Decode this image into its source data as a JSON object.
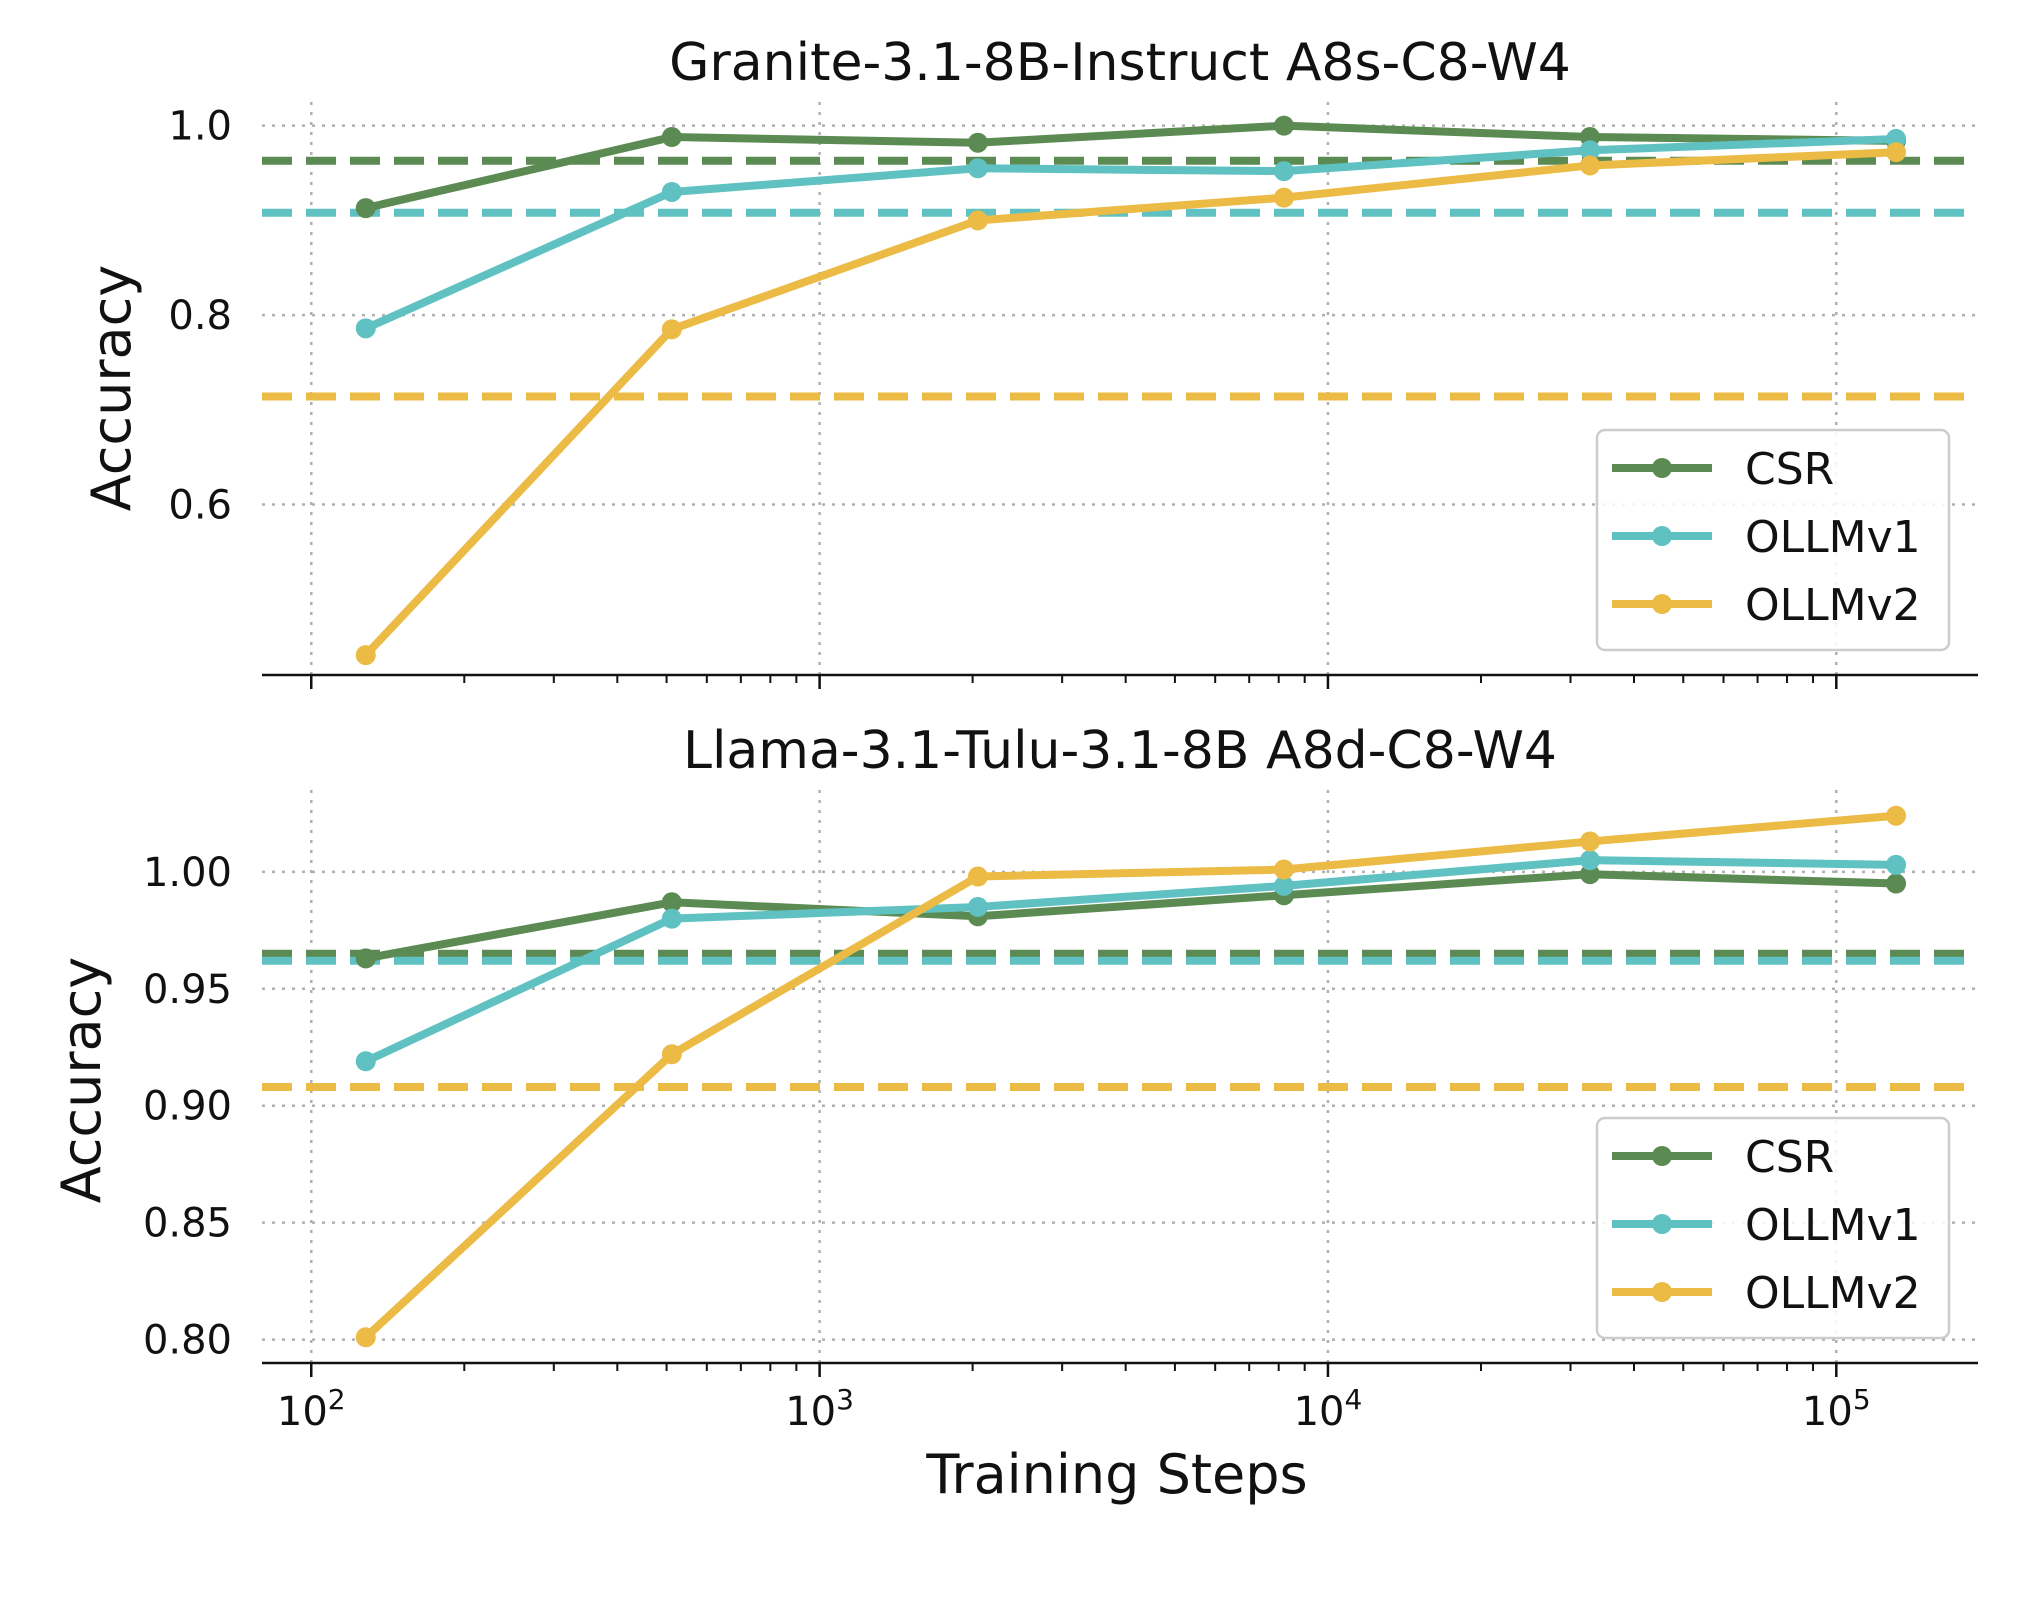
{
  "chart_data": [
    {
      "type": "line",
      "title": "Granite-3.1-8B-Instruct A8s-C8-W4",
      "xlabel": "",
      "ylabel": "Accuracy",
      "xscale": "log",
      "xlim": [
        80,
        190000
      ],
      "ylim": [
        0.42,
        1.025
      ],
      "grid": true,
      "legend": "lower right",
      "yticks": [
        0.6,
        0.8,
        1.0
      ],
      "ytick_labels": [
        "0.6",
        "0.8",
        "1.0"
      ],
      "x": [
        128,
        512,
        2048,
        8192,
        32768,
        131072
      ],
      "series": [
        {
          "name": "CSR",
          "color": "#5b8a52",
          "values": [
            0.913,
            0.988,
            0.982,
            1.0,
            0.988,
            0.984
          ],
          "baseline": 0.963
        },
        {
          "name": "OLLMv1",
          "color": "#5fc1c1",
          "values": [
            0.786,
            0.93,
            0.955,
            0.952,
            0.974,
            0.986
          ],
          "baseline": 0.908
        },
        {
          "name": "OLLMv2",
          "color": "#ebbb45",
          "values": [
            0.441,
            0.785,
            0.9,
            0.924,
            0.958,
            0.972
          ],
          "baseline": 0.714
        }
      ]
    },
    {
      "type": "line",
      "title": "Llama-3.1-Tulu-3.1-8B A8d-C8-W4",
      "xlabel": "Training Steps",
      "ylabel": "Accuracy",
      "xscale": "log",
      "xlim": [
        80,
        190000
      ],
      "ylim": [
        0.79,
        1.035
      ],
      "grid": true,
      "legend": "lower right",
      "yticks": [
        0.8,
        0.85,
        0.9,
        0.95,
        1.0
      ],
      "ytick_labels": [
        "0.80",
        "0.85",
        "0.90",
        "0.95",
        "1.00"
      ],
      "xticks": [
        100,
        1000,
        10000,
        100000
      ],
      "xtick_labels": [
        [
          "10",
          "2"
        ],
        [
          "10",
          "3"
        ],
        [
          "10",
          "4"
        ],
        [
          "10",
          "5"
        ]
      ],
      "x": [
        128,
        512,
        2048,
        8192,
        32768,
        131072
      ],
      "series": [
        {
          "name": "CSR",
          "color": "#5b8a52",
          "values": [
            0.963,
            0.987,
            0.981,
            0.99,
            0.999,
            0.995
          ],
          "baseline": 0.965
        },
        {
          "name": "OLLMv1",
          "color": "#5fc1c1",
          "values": [
            0.919,
            0.98,
            0.985,
            0.994,
            1.005,
            1.003
          ],
          "baseline": 0.962
        },
        {
          "name": "OLLMv2",
          "color": "#ebbb45",
          "values": [
            0.801,
            0.922,
            0.998,
            1.001,
            1.013,
            1.024
          ],
          "baseline": 0.908
        }
      ]
    }
  ]
}
